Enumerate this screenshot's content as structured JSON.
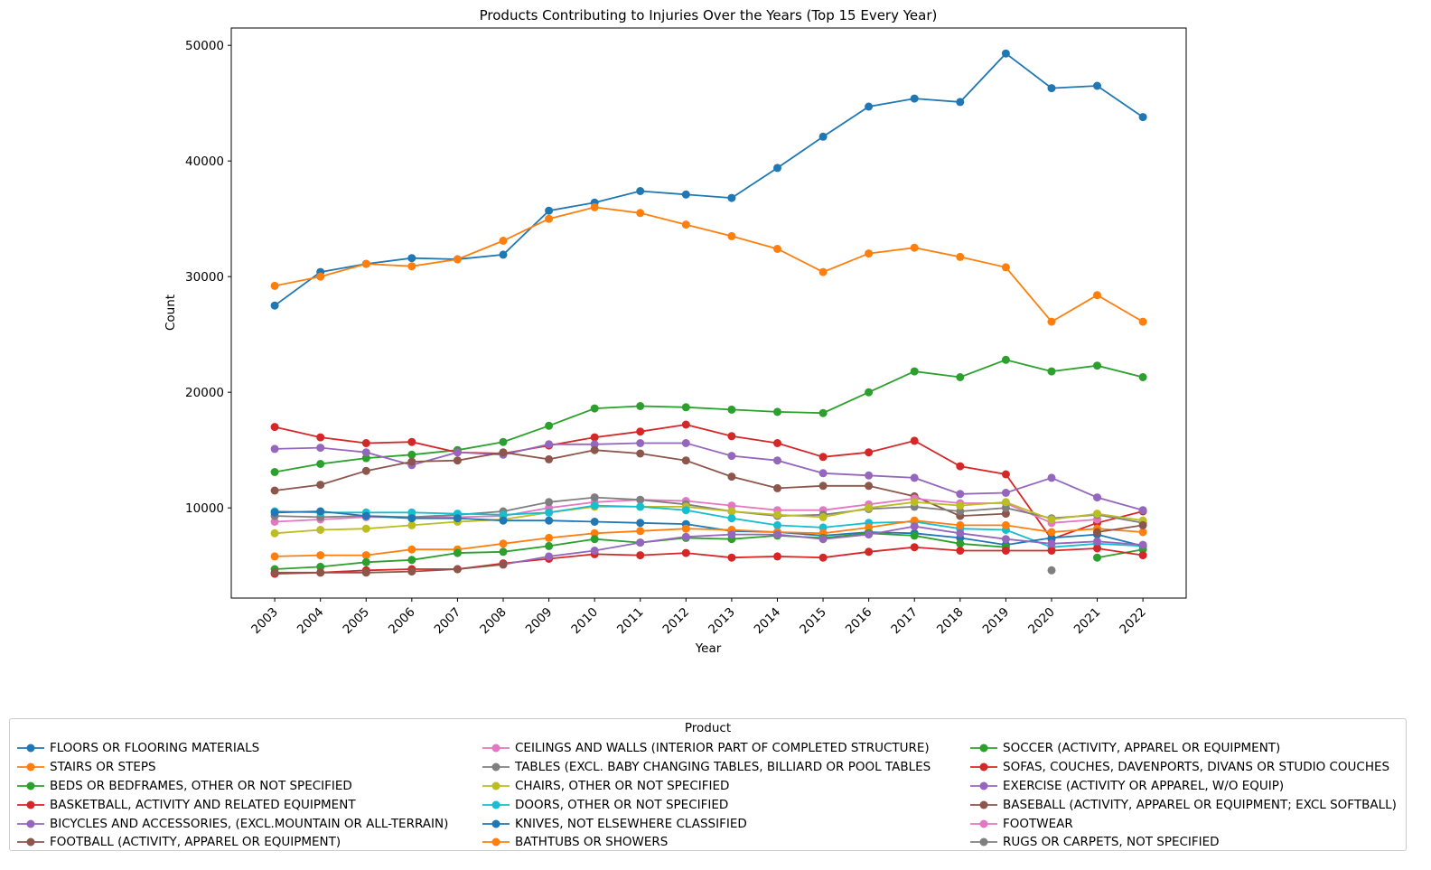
{
  "chart_data": {
    "type": "line",
    "title": "Products Contributing to Injuries Over the Years (Top 15 Every Year)",
    "xlabel": "Year",
    "ylabel": "Count",
    "x": [
      "2003",
      "2004",
      "2005",
      "2006",
      "2007",
      "2008",
      "2009",
      "2010",
      "2011",
      "2012",
      "2013",
      "2014",
      "2015",
      "2016",
      "2017",
      "2018",
      "2019",
      "2020",
      "2021",
      "2022"
    ],
    "yticks": [
      10000,
      20000,
      30000,
      40000,
      50000
    ],
    "ylim": [
      2200,
      51500
    ],
    "grid": false,
    "legend": {
      "title": "Product",
      "placement": "bottom-center, outside plot"
    },
    "series": [
      {
        "name": "FLOORS OR FLOORING MATERIALS",
        "color": "#1f77b4",
        "values": [
          27500,
          30400,
          31100,
          31600,
          31500,
          31900,
          35700,
          36400,
          37400,
          37100,
          36800,
          39400,
          42100,
          44700,
          45400,
          45100,
          49300,
          46300,
          46500,
          43800
        ]
      },
      {
        "name": "STAIRS OR STEPS",
        "color": "#ff7f0e",
        "values": [
          29200,
          30000,
          31100,
          30900,
          31500,
          33100,
          35000,
          36000,
          35500,
          34500,
          33500,
          32400,
          30400,
          32000,
          32500,
          31700,
          30800,
          26100,
          28400,
          26100
        ]
      },
      {
        "name": "BEDS OR BEDFRAMES, OTHER OR NOT SPECIFIED",
        "color": "#2ca02c",
        "values": [
          13100,
          13800,
          14300,
          14600,
          15000,
          15700,
          17100,
          18600,
          18800,
          18700,
          18500,
          18300,
          18200,
          20000,
          21800,
          21300,
          22800,
          21800,
          22300,
          21300
        ]
      },
      {
        "name": "BASKETBALL, ACTIVITY AND RELATED EQUIPMENT",
        "color": "#d62728",
        "values": [
          17000,
          16100,
          15600,
          15700,
          14800,
          14700,
          15400,
          16100,
          16600,
          17200,
          16200,
          15600,
          14400,
          14800,
          15800,
          13600,
          12900,
          7300,
          8700,
          9700
        ]
      },
      {
        "name": "BICYCLES AND ACCESSORIES, (EXCL.MOUNTAIN OR ALL-TERRAIN)",
        "color": "#9467bd",
        "values": [
          15100,
          15200,
          14800,
          13700,
          14800,
          14600,
          15500,
          15500,
          15600,
          15600,
          14500,
          14100,
          13000,
          12800,
          12600,
          11200,
          11300,
          12600,
          10900,
          9800
        ]
      },
      {
        "name": "FOOTBALL (ACTIVITY, APPAREL OR EQUIPMENT)",
        "color": "#8c564b",
        "values": [
          11500,
          12000,
          13200,
          14000,
          14100,
          14800,
          14200,
          15000,
          14700,
          14100,
          12700,
          11700,
          11900,
          11900,
          11000,
          9300,
          9500,
          null,
          null,
          null
        ]
      },
      {
        "name": "CEILINGS AND WALLS (INTERIOR PART OF COMPLETED STRUCTURE)",
        "color": "#e377c2",
        "values": [
          8800,
          9000,
          9200,
          9200,
          9200,
          9300,
          10000,
          10500,
          10700,
          10600,
          10200,
          9800,
          9800,
          10300,
          10800,
          10400,
          10400,
          8700,
          9000,
          null
        ]
      },
      {
        "name": "TABLES (EXCL.  BABY CHANGING TABLES, BILLIARD OR POOL TABLES",
        "color": "#7f7f7f",
        "values": [
          9300,
          9200,
          9300,
          9200,
          9400,
          9700,
          10500,
          10900,
          10700,
          10300,
          9700,
          9300,
          9400,
          9900,
          10100,
          9700,
          10000,
          9100,
          9400,
          8700
        ]
      },
      {
        "name": "CHAIRS, OTHER OR NOT SPECIFIED",
        "color": "#bcbd22",
        "values": [
          7800,
          8100,
          8200,
          8500,
          8800,
          9000,
          9600,
          10100,
          10100,
          10100,
          9700,
          9400,
          9200,
          10000,
          10500,
          10200,
          10500,
          9000,
          9500,
          8900
        ]
      },
      {
        "name": "DOORS, OTHER OR NOT SPECIFIED",
        "color": "#17becf",
        "values": [
          9700,
          9600,
          9600,
          9600,
          9500,
          9400,
          9600,
          10200,
          10100,
          9800,
          9100,
          8500,
          8300,
          8700,
          8800,
          8200,
          8100,
          6600,
          6900,
          6700
        ]
      },
      {
        "name": "KNIVES, NOT ELSEWHERE CLASSIFIED",
        "color": "#1f77b4",
        "values": [
          9600,
          9700,
          9300,
          9100,
          9100,
          8900,
          8900,
          8800,
          8700,
          8600,
          8000,
          7900,
          7600,
          7900,
          7800,
          7400,
          6800,
          7400,
          7700,
          6700
        ]
      },
      {
        "name": "BATHTUBS OR SHOWERS",
        "color": "#ff7f0e",
        "values": [
          5800,
          5900,
          5900,
          6400,
          6400,
          6900,
          7400,
          7800,
          8000,
          8200,
          8100,
          7900,
          7800,
          8300,
          8900,
          8500,
          8500,
          7900,
          8200,
          7900
        ]
      },
      {
        "name": "SOCCER (ACTIVITY, APPAREL OR EQUIPMENT)",
        "color": "#2ca02c",
        "values": [
          4700,
          4900,
          5300,
          5500,
          6100,
          6200,
          6700,
          7300,
          7000,
          7400,
          7300,
          7600,
          7400,
          7800,
          7600,
          6900,
          6600,
          null,
          5700,
          6400
        ]
      },
      {
        "name": "SOFAS, COUCHES, DAVENPORTS, DIVANS OR STUDIO COUCHES",
        "color": "#d62728",
        "values": [
          4300,
          4400,
          4600,
          4700,
          4700,
          5200,
          5600,
          6000,
          5900,
          6100,
          5700,
          5800,
          5700,
          6200,
          6600,
          6300,
          6300,
          6300,
          6500,
          5900
        ]
      },
      {
        "name": "EXERCISE (ACTIVITY OR APPAREL, W/O EQUIP)",
        "color": "#9467bd",
        "values": [
          null,
          null,
          null,
          null,
          null,
          5100,
          5800,
          6300,
          7000,
          7500,
          7700,
          7700,
          7300,
          7700,
          8400,
          7800,
          7300,
          6900,
          7100,
          6800
        ]
      },
      {
        "name": "BASEBALL (ACTIVITY, APPAREL OR EQUIPMENT; EXCL SOFTBALL)",
        "color": "#8c564b",
        "values": [
          4400,
          4400,
          4400,
          4500,
          4700,
          5100,
          null,
          null,
          null,
          null,
          null,
          null,
          null,
          null,
          null,
          null,
          null,
          null,
          7900,
          8500
        ]
      },
      {
        "name": "FOOTWEAR",
        "color": "#e377c2",
        "values": [
          null,
          null,
          null,
          null,
          null,
          null,
          null,
          null,
          null,
          null,
          null,
          null,
          null,
          null,
          null,
          null,
          null,
          null,
          null,
          null
        ]
      },
      {
        "name": "RUGS OR CARPETS, NOT SPECIFIED",
        "color": "#7f7f7f",
        "values": [
          null,
          null,
          null,
          null,
          null,
          null,
          null,
          null,
          null,
          null,
          null,
          null,
          null,
          null,
          null,
          null,
          null,
          4600,
          null,
          null
        ]
      }
    ]
  }
}
